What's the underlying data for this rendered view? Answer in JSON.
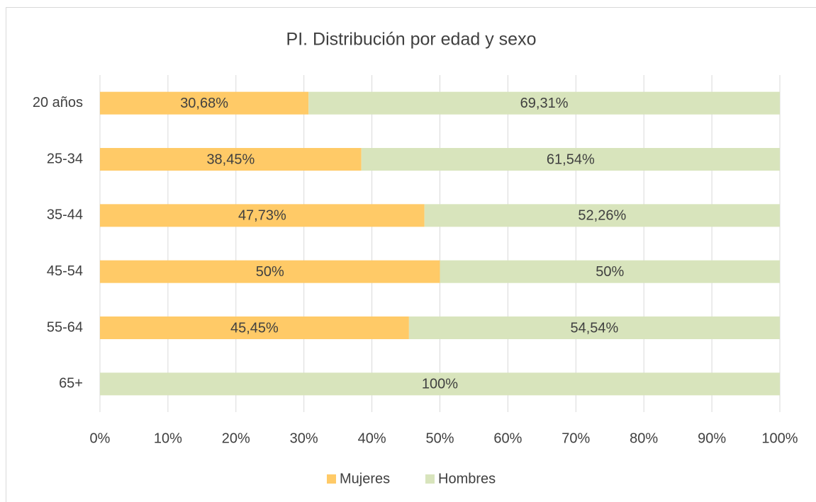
{
  "chart_data": {
    "type": "stacked_barh",
    "title": "PI. Distribución por edad y sexo",
    "categories": [
      "20 años",
      "25-34",
      "35-44",
      "45-54",
      "55-64",
      "65+"
    ],
    "series": [
      {
        "name": "Mujeres",
        "color": "#ffca67",
        "values": [
          30.68,
          38.45,
          47.73,
          50,
          45.45,
          0
        ],
        "value_labels": [
          "30,68%",
          "38,45%",
          "47,73%",
          "50%",
          "45,45%",
          null
        ]
      },
      {
        "name": "Hombres",
        "color": "#d8e4bc",
        "values": [
          69.31,
          61.54,
          52.26,
          50,
          54.54,
          100
        ],
        "value_labels": [
          "69,31%",
          "61,54%",
          "52,26%",
          "50%",
          "54,54%",
          "100%"
        ]
      }
    ],
    "xlim": [
      0,
      100
    ],
    "xticks": [
      {
        "value": 0,
        "label": "0%"
      },
      {
        "value": 10,
        "label": "10%"
      },
      {
        "value": 20,
        "label": "20%"
      },
      {
        "value": 30,
        "label": "30%"
      },
      {
        "value": 40,
        "label": "40%"
      },
      {
        "value": 50,
        "label": "50%"
      },
      {
        "value": 60,
        "label": "60%"
      },
      {
        "value": 70,
        "label": "70%"
      },
      {
        "value": 80,
        "label": "80%"
      },
      {
        "value": 90,
        "label": "90%"
      },
      {
        "value": 100,
        "label": "100%"
      }
    ],
    "grid": true,
    "legend": "bottom"
  }
}
